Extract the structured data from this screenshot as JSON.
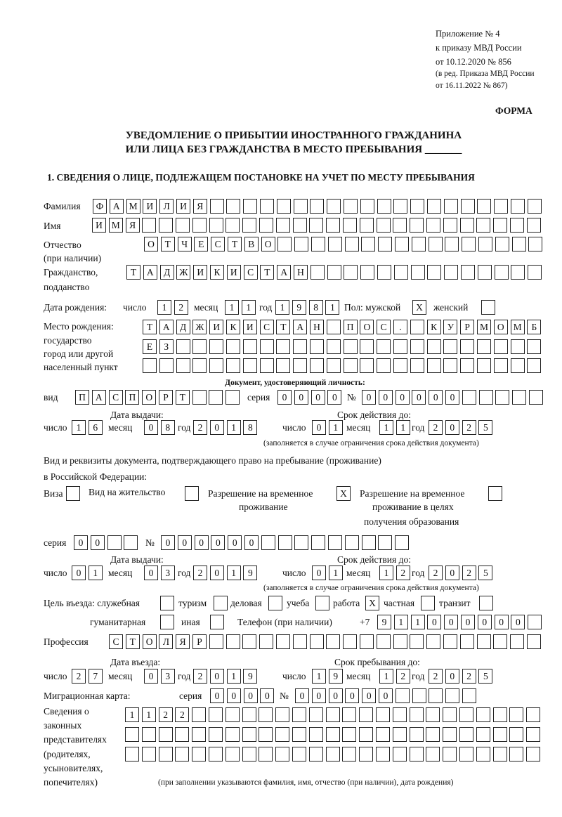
{
  "header": {
    "appendix": "Приложение № 4",
    "order": "к приказу МВД России",
    "order_date": "от 10.12.2020 № 856",
    "edition1": "(в ред. Приказа МВД России",
    "edition2": "от 16.11.2022 № 867)",
    "form_label": "ФОРМА",
    "title1": "УВЕДОМЛЕНИЕ О ПРИБЫТИИ ИНОСТРАННОГО ГРАЖДАНИНА",
    "title2": "ИЛИ ЛИЦА БЕЗ ГРАЖДАНСТВА В МЕСТО ПРЕБЫВАНИЯ _______"
  },
  "section1": {
    "title": "1. СВЕДЕНИЯ О ЛИЦЕ, ПОДЛЕЖАЩЕМ ПОСТАНОВКЕ НА УЧЕТ ПО МЕСТУ ПРЕБЫВАНИЯ"
  },
  "labels": {
    "surname": "Фамилия",
    "name": "Имя",
    "patronymic": "Отчество",
    "patronymic_note": "(при наличии)",
    "citizenship": "Гражданство,",
    "citizenship2": "подданство",
    "birth_date": "Дата рождения:",
    "day": "число",
    "month": "месяц",
    "year": "год",
    "sex_male": "Пол: мужской",
    "female": "женский",
    "birth_place": "Место рождения:",
    "state": "государство",
    "city": "город или другой",
    "locality": "населенный пункт",
    "id_doc": "Документ, удостоверяющий личность:",
    "kind": "вид",
    "series": "серия",
    "number": "№",
    "issue_date": "Дата выдачи:",
    "valid_until": "Срок действия до:",
    "valid_note": "(заполняется в случае ограничения срока действия документа)",
    "right_doc1": "Вид и реквизиты документа, подтверждающего право на пребывание (проживание)",
    "right_doc2": "в Российской Федерации:",
    "visa": "Виза",
    "residence": "Вид на жительство",
    "trp1": "Разрешение на временное",
    "trp2": "проживание",
    "trpe1": "Разрешение на временное",
    "trpe2": "проживание в целях",
    "trpe3": "получения образования",
    "purpose": "Цель въезда: служебная",
    "tourism": "туризм",
    "business": "деловая",
    "study": "учеба",
    "work": "работа",
    "private": "частная",
    "transit": "транзит",
    "humanitarian": "гуманитарная",
    "other": "иная",
    "phone": "Телефон (при наличии)",
    "phone_prefix": "+7",
    "profession": "Профессия",
    "entry_date": "Дата въезда:",
    "stay_until": "Срок пребывания до:",
    "migration_card": "Миграционная карта:",
    "reps1": "Сведения о",
    "reps2": "законных",
    "reps3": "представителях",
    "reps4": "(родителях,",
    "reps5": "усыновителях,",
    "reps6": "попечителях)",
    "reps_note": "(при заполнении указываются фамилия, имя, отчество (при наличии), дата рождения)"
  },
  "values": {
    "surname": [
      "Ф",
      "А",
      "М",
      "И",
      "Л",
      "И",
      "Я"
    ],
    "name": [
      "И",
      "М",
      "Я"
    ],
    "patronymic": [
      "О",
      "Т",
      "Ч",
      "Е",
      "С",
      "Т",
      "В",
      "О"
    ],
    "citizenship": [
      "Т",
      "А",
      "Д",
      "Ж",
      "И",
      "К",
      "И",
      "С",
      "Т",
      "А",
      "Н"
    ],
    "birth_day": [
      "1",
      "2"
    ],
    "birth_month": [
      "1",
      "1"
    ],
    "birth_year": [
      "1",
      "9",
      "8",
      "1"
    ],
    "sex_male": [
      "X"
    ],
    "sex_female": [
      ""
    ],
    "birth_place_1": [
      "Т",
      "А",
      "Д",
      "Ж",
      "И",
      "К",
      "И",
      "С",
      "Т",
      "А",
      "Н",
      "",
      "П",
      "О",
      "С",
      ".",
      "",
      "К",
      "У",
      "Р",
      "М",
      "О",
      "М",
      "Б"
    ],
    "birth_place_2": [
      "Е",
      "З"
    ],
    "birth_place_3": [],
    "doc_kind": [
      "П",
      "А",
      "С",
      "П",
      "О",
      "Р",
      "Т"
    ],
    "doc_series": [
      "0",
      "0",
      "0",
      "0"
    ],
    "doc_number": [
      "0",
      "0",
      "0",
      "0",
      "0",
      "0"
    ],
    "doc_issue_day": [
      "1",
      "6"
    ],
    "doc_issue_month": [
      "0",
      "8"
    ],
    "doc_issue_year": [
      "2",
      "0",
      "1",
      "8"
    ],
    "doc_valid_day": [
      "0",
      "1"
    ],
    "doc_valid_month": [
      "1",
      "1"
    ],
    "doc_valid_year": [
      "2",
      "0",
      "2",
      "5"
    ],
    "visa": [
      ""
    ],
    "residence": [
      ""
    ],
    "trp": [
      "X"
    ],
    "trpe": [
      ""
    ],
    "rp_series": [
      "0",
      "0"
    ],
    "rp_number": [
      "0",
      "0",
      "0",
      "0",
      "0",
      "0"
    ],
    "rp_issue_day": [
      "0",
      "1"
    ],
    "rp_issue_month": [
      "0",
      "3"
    ],
    "rp_issue_year": [
      "2",
      "0",
      "1",
      "9"
    ],
    "rp_valid_day": [
      "0",
      "1"
    ],
    "rp_valid_month": [
      "1",
      "2"
    ],
    "rp_valid_year": [
      "2",
      "0",
      "2",
      "5"
    ],
    "purpose_service": [
      ""
    ],
    "purpose_tourism": [
      ""
    ],
    "purpose_business": [
      ""
    ],
    "purpose_study": [
      ""
    ],
    "purpose_work": [
      "X"
    ],
    "purpose_private": [
      ""
    ],
    "purpose_transit": [
      ""
    ],
    "purpose_humanitarian": [
      ""
    ],
    "purpose_other": [
      ""
    ],
    "phone": [
      "9",
      "1",
      "1",
      "0",
      "0",
      "0",
      "0",
      "0",
      "0"
    ],
    "profession": [
      "С",
      "Т",
      "О",
      "Л",
      "Я",
      "Р"
    ],
    "entry_day": [
      "2",
      "7"
    ],
    "entry_month": [
      "0",
      "3"
    ],
    "entry_year": [
      "2",
      "0",
      "1",
      "9"
    ],
    "stay_day": [
      "1",
      "9"
    ],
    "stay_month": [
      "1",
      "2"
    ],
    "stay_year": [
      "2",
      "0",
      "2",
      "5"
    ],
    "mc_series": [
      "0",
      "0",
      "0",
      "0"
    ],
    "mc_number": [
      "0",
      "0",
      "0",
      "0",
      "0",
      "0"
    ],
    "reps_1": [
      "1",
      "1",
      "2",
      "2"
    ],
    "reps_2": [],
    "reps_3": []
  }
}
